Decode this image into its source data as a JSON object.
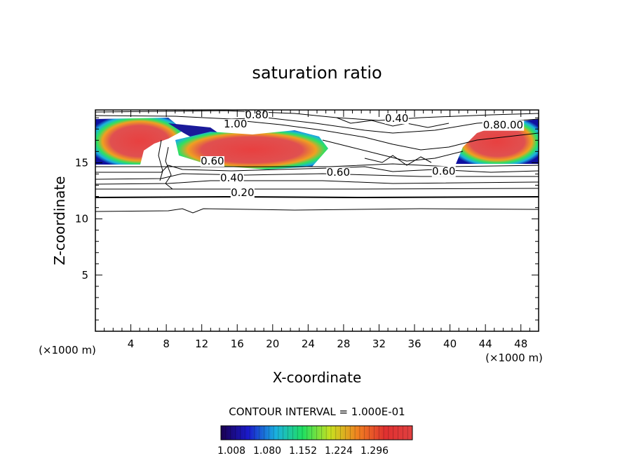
{
  "chart_data": {
    "type": "heatmap",
    "title": "saturation ratio",
    "xlabel": "X-coordinate",
    "ylabel": "Z-coordinate",
    "x_unit_label_left": "(×1000 m)",
    "x_unit_label_right": "(×1000 m)",
    "xlim": [
      0,
      50
    ],
    "ylim": [
      0,
      19.7
    ],
    "x_ticks": [
      4,
      8,
      12,
      16,
      20,
      24,
      28,
      32,
      36,
      40,
      44,
      48
    ],
    "y_ticks": [
      5,
      10,
      15
    ],
    "grid": false,
    "contour_interval_text": "CONTOUR INTERVAL = 1.000E-01",
    "colorbar": {
      "ticks": [
        "1.008",
        "1.080",
        "1.152",
        "1.224",
        "1.296"
      ],
      "colors": [
        "#1a0050",
        "#1a1acc",
        "#1ab0e0",
        "#20e060",
        "#c8e020",
        "#f08020",
        "#e03030",
        "#e04040"
      ]
    },
    "contour_labels": [
      {
        "text": "0.80",
        "x": 18.2,
        "y": 19.0
      },
      {
        "text": "0.40",
        "x": 34.0,
        "y": 18.7
      },
      {
        "text": "0.80.00",
        "x": 46.0,
        "y": 18.1
      },
      {
        "text": "1.00",
        "x": 15.8,
        "y": 18.2
      },
      {
        "text": "0.60",
        "x": 13.2,
        "y": 14.9
      },
      {
        "text": "0.60",
        "x": 27.4,
        "y": 13.9
      },
      {
        "text": "0.60",
        "x": 39.3,
        "y": 14.0
      },
      {
        "text": "0.40",
        "x": 15.4,
        "y": 13.4
      },
      {
        "text": "0.20",
        "x": 16.6,
        "y": 12.1
      }
    ],
    "supersaturated_regions": [
      {
        "x_range": [
          0,
          8.5
        ],
        "z_range": [
          15.0,
          18.9
        ],
        "max": 1.32
      },
      {
        "x_range": [
          9.5,
          26.0
        ],
        "z_range": [
          14.8,
          18.3
        ],
        "max": 1.32
      },
      {
        "x_range": [
          40.0,
          50.0
        ],
        "z_range": [
          14.9,
          18.9
        ],
        "max": 1.32
      }
    ]
  }
}
